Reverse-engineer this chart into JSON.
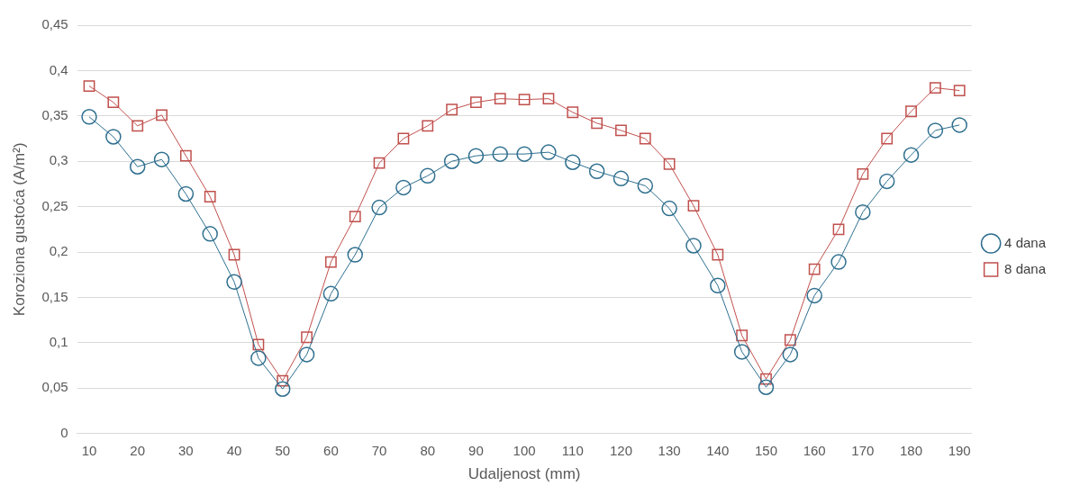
{
  "chart_data": {
    "type": "line",
    "xlabel": "Udaljenost (mm)",
    "ylabel": "Koroziona gustoća (A/m²)",
    "categories": [
      "10",
      null,
      "20",
      null,
      "30",
      null,
      "40",
      null,
      "50",
      null,
      "60",
      null,
      "70",
      null,
      "80",
      null,
      "90",
      null,
      "100",
      null,
      "110",
      null,
      "120",
      null,
      "130",
      null,
      "140",
      null,
      "150",
      null,
      "160",
      null,
      "170",
      null,
      "180",
      null,
      "190"
    ],
    "series": [
      {
        "name": "4 dana",
        "color": "#2f6f8f",
        "marker": "circle",
        "values": [
          0.349,
          0.327,
          0.294,
          0.302,
          0.264,
          0.22,
          0.167,
          0.083,
          0.049,
          0.087,
          0.154,
          0.197,
          0.249,
          0.271,
          0.284,
          0.3,
          0.306,
          0.308,
          0.308,
          0.31,
          0.299,
          0.289,
          0.281,
          0.273,
          0.248,
          0.207,
          0.163,
          0.09,
          0.051,
          0.087,
          0.152,
          0.189,
          0.244,
          0.278,
          0.307,
          0.334,
          0.34
        ]
      },
      {
        "name": "8 dana",
        "color": "#c0504d",
        "marker": "square",
        "values": [
          0.383,
          0.365,
          0.339,
          0.351,
          0.306,
          0.261,
          0.197,
          0.098,
          0.058,
          0.106,
          0.189,
          0.239,
          0.298,
          0.325,
          0.339,
          0.357,
          0.365,
          0.369,
          0.368,
          0.369,
          0.354,
          0.342,
          0.334,
          0.325,
          0.297,
          0.251,
          0.197,
          0.108,
          0.06,
          0.103,
          0.181,
          0.225,
          0.286,
          0.325,
          0.355,
          0.381,
          0.378
        ]
      }
    ],
    "ylim": [
      0,
      0.45
    ],
    "yticks": [
      {
        "value": 0,
        "label": "0"
      },
      {
        "value": 0.05,
        "label": "0,05"
      },
      {
        "value": 0.1,
        "label": "0,1"
      },
      {
        "value": 0.15,
        "label": "0,15"
      },
      {
        "value": 0.2,
        "label": "0,2"
      },
      {
        "value": 0.25,
        "label": "0,25"
      },
      {
        "value": 0.3,
        "label": "0,3"
      },
      {
        "value": 0.35,
        "label": "0,35"
      },
      {
        "value": 0.4,
        "label": "0,4"
      },
      {
        "value": 0.45,
        "label": "0,45"
      }
    ],
    "grid": "y",
    "legend": "right"
  }
}
